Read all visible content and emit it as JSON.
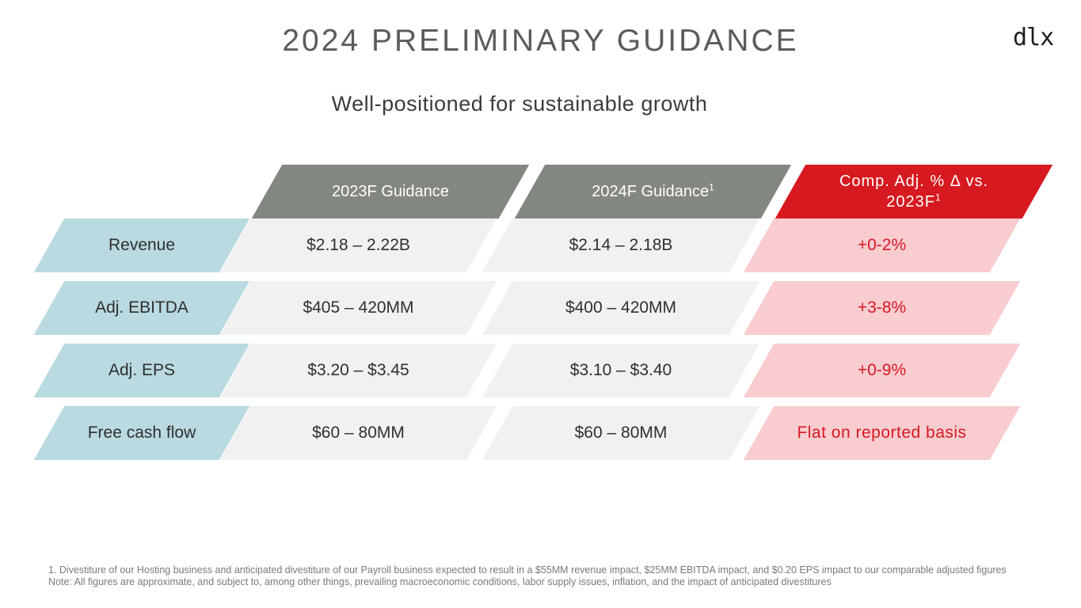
{
  "title": "2024 PRELIMINARY GUIDANCE",
  "logo": "dlx",
  "subtitle": "Well-positioned for sustainable growth",
  "headers": {
    "col1": "2023F Guidance",
    "col2": "2024F Guidance",
    "col2_sup": "1",
    "col3_line1": "Comp. Adj. % Δ vs.",
    "col3_line2": "2023F",
    "col3_sup": "1"
  },
  "rows": [
    {
      "label": "Revenue",
      "f2023": "$2.18 – 2.22B",
      "f2024": "$2.14 – 2.18B",
      "change": "+0-2%"
    },
    {
      "label": "Adj. EBITDA",
      "f2023": "$405 – 420MM",
      "f2024": "$400 – 420MM",
      "change": "+3-8%"
    },
    {
      "label": "Adj. EPS",
      "f2023": "$3.20 – $3.45",
      "f2024": "$3.10 – $3.40",
      "change": "+0-9%"
    },
    {
      "label": "Free cash flow",
      "f2023": "$60 – 80MM",
      "f2024": "$60 – 80MM",
      "change": "Flat on reported basis"
    }
  ],
  "footnote": "1. Divestiture of our Hosting business and anticipated divestiture of our Payroll business expected to result in a $55MM revenue impact, $25MM EBITDA impact, and $0.20 EPS impact to our comparable adjusted figures  Note: All figures are approximate, and subject to, among other things, prevailing macroeconomic conditions, labor supply issues, inflation, and the impact of anticipated divestitures",
  "colors": {
    "gray_header": "#82877f",
    "red_header": "#d71920",
    "label_bg": "#b9dae0",
    "value_bg": "#f1f1f1",
    "change_bg": "#f9ccd0",
    "change_text": "#d71920"
  }
}
